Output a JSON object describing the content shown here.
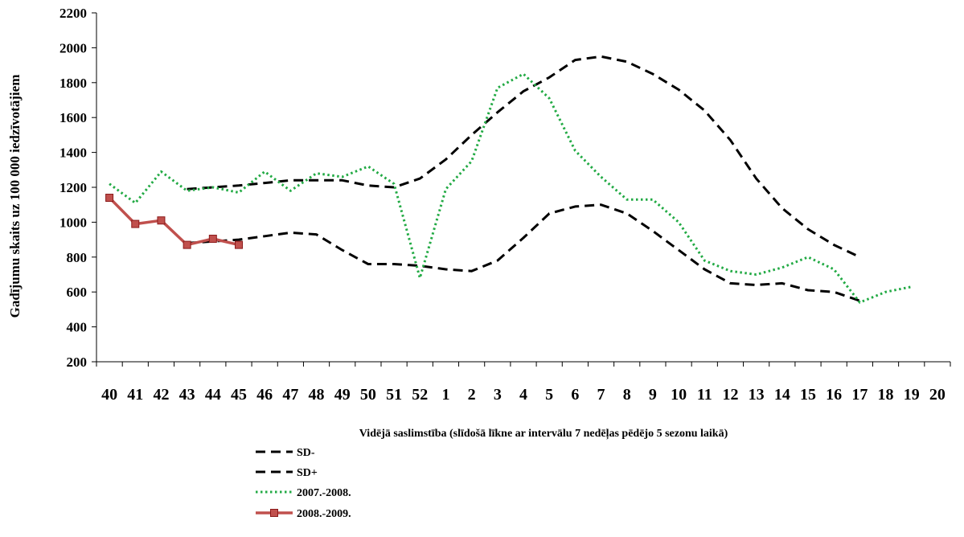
{
  "chart_data": {
    "type": "line",
    "xlabel": "",
    "ylabel": "Gadījumu skaits uz 100 000 iedzīvotājiem",
    "ylim": [
      200,
      2200
    ],
    "yticks": [
      200,
      400,
      600,
      800,
      1000,
      1200,
      1400,
      1600,
      1800,
      2000,
      2200
    ],
    "categories": [
      "40",
      "41",
      "42",
      "43",
      "44",
      "45",
      "46",
      "47",
      "48",
      "49",
      "50",
      "51",
      "52",
      "1",
      "2",
      "3",
      "4",
      "5",
      "6",
      "7",
      "8",
      "9",
      "10",
      "11",
      "12",
      "13",
      "14",
      "15",
      "16",
      "17",
      "18",
      "19",
      "20"
    ],
    "grid": false,
    "legend_position": "bottom",
    "legend_title": "Vidējā saslimstība (slīdošā līkne ar intervālu 7 nedēļas pēdējo 5 sezonu laikā)",
    "series": [
      {
        "name": "SD-",
        "color": "#000000",
        "style": "dashed",
        "values": [
          null,
          null,
          null,
          880,
          890,
          900,
          920,
          940,
          930,
          840,
          760,
          760,
          750,
          730,
          720,
          780,
          910,
          1050,
          1090,
          1100,
          1050,
          950,
          840,
          730,
          650,
          640,
          650,
          610,
          600,
          550,
          null,
          null,
          null
        ]
      },
      {
        "name": "SD+",
        "color": "#000000",
        "style": "dashed",
        "values": [
          null,
          null,
          null,
          1190,
          1200,
          1210,
          1225,
          1240,
          1240,
          1240,
          1210,
          1200,
          1250,
          1360,
          1500,
          1630,
          1750,
          1830,
          1930,
          1950,
          1920,
          1850,
          1760,
          1640,
          1470,
          1250,
          1080,
          960,
          870,
          800,
          null,
          null,
          null
        ]
      },
      {
        "name": "2007.-2008.",
        "color": "#22aa44",
        "style": "dotted",
        "values": [
          1220,
          1110,
          1290,
          1180,
          1200,
          1170,
          1290,
          1180,
          1280,
          1260,
          1320,
          1220,
          680,
          1190,
          1350,
          1770,
          1850,
          1710,
          1410,
          1260,
          1130,
          1130,
          1000,
          780,
          720,
          700,
          740,
          800,
          730,
          540,
          600,
          630,
          null
        ]
      },
      {
        "name": "2008.-2009.",
        "color": "#c0504d",
        "style": "solid-square",
        "values": [
          1140,
          990,
          1010,
          870,
          905,
          870,
          null,
          null,
          null,
          null,
          null,
          null,
          null,
          null,
          null,
          null,
          null,
          null,
          null,
          null,
          null,
          null,
          null,
          null,
          null,
          null,
          null,
          null,
          null,
          null,
          null,
          null,
          null
        ]
      }
    ]
  }
}
